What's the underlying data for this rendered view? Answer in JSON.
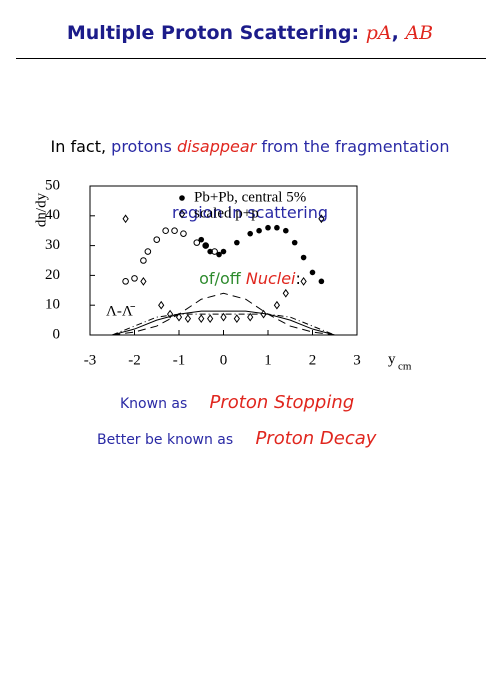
{
  "header": {
    "title": [
      "Multiple Proton Scattering: ",
      "pA",
      ", ",
      "AB"
    ]
  },
  "intro": {
    "line1": [
      "In fact, ",
      "protons ",
      "disappear",
      " from the fragmentation"
    ],
    "line2": "region in scattering",
    "line3": [
      "of/off ",
      "Nuclei",
      ":"
    ]
  },
  "chart_data": {
    "type": "scatter",
    "ylabel": "dn/dy",
    "xlabel": "y",
    "xlabel_sub": "cm",
    "annotation": "Λ-Λ̄",
    "xlim": [
      -3,
      3
    ],
    "xticks": [
      -3,
      -2,
      -1,
      0,
      1,
      2,
      3
    ],
    "ylim": [
      0,
      50
    ],
    "yticks": [
      0,
      10,
      20,
      30,
      40,
      50
    ],
    "series": [
      {
        "name": "Pb+Pb, central 5%",
        "marker": "filled-circle",
        "color": "#000000",
        "x": [
          -0.5,
          -0.4,
          -0.3,
          -0.1,
          0,
          0.3,
          0.6,
          0.8,
          1.0,
          1.2,
          1.4,
          1.6,
          1.8,
          2.0,
          2.2
        ],
        "values": [
          32,
          30,
          28,
          27,
          28,
          31,
          34,
          35,
          36,
          36,
          35,
          31,
          26,
          21,
          18
        ]
      },
      {
        "marker": "open-circle",
        "color": "#000000",
        "x": [
          -2.2,
          -2.0,
          -1.8,
          -1.7,
          -1.5,
          -1.3,
          -1.1,
          -0.9,
          -0.6,
          -0.4,
          -0.2
        ],
        "values": [
          18,
          19,
          25,
          28,
          32,
          35,
          35,
          34,
          31,
          30,
          28
        ]
      },
      {
        "name": "scaled p+p",
        "marker": "diamond",
        "color": "#000000",
        "x": [
          -2.2,
          -1.8,
          -1.4,
          -1.2,
          -1.0,
          -0.8,
          -0.5,
          -0.3,
          0,
          0.3,
          0.6,
          0.9,
          1.2,
          1.4,
          1.8,
          2.2
        ],
        "values": [
          39,
          18,
          10,
          7,
          6,
          5.5,
          5.5,
          5.5,
          6,
          5.5,
          6,
          7,
          10,
          14,
          18,
          39
        ]
      },
      {
        "marker": "line",
        "dash": "8 5",
        "color": "#000000",
        "x": [
          -2.5,
          -2,
          -1.5,
          -1,
          -0.5,
          0,
          0.5,
          1,
          1.5,
          2,
          2.5
        ],
        "values": [
          0,
          1,
          3,
          7,
          12,
          14,
          12,
          7,
          3,
          1,
          0
        ]
      },
      {
        "marker": "line",
        "dash": "none",
        "color": "#000000",
        "x": [
          -2.5,
          -2,
          -1.5,
          -1,
          -0.5,
          0,
          0.5,
          1,
          1.5,
          2,
          2.5
        ],
        "values": [
          0,
          2,
          5,
          7,
          8,
          8,
          8,
          7,
          5,
          2,
          0
        ]
      },
      {
        "marker": "line",
        "dash": "6 3 1 3",
        "color": "#000000",
        "x": [
          -2.5,
          -2,
          -1.5,
          -1,
          -0.5,
          0,
          0.5,
          1,
          1.5,
          2,
          2.5
        ],
        "values": [
          0,
          3,
          6,
          7,
          7,
          7,
          7,
          7,
          6,
          3,
          0
        ]
      }
    ]
  },
  "footer": {
    "known_label": "Known as",
    "known_value": "Proton Stopping",
    "better_label": "Better be known as",
    "better_value": "Proton Decay"
  }
}
